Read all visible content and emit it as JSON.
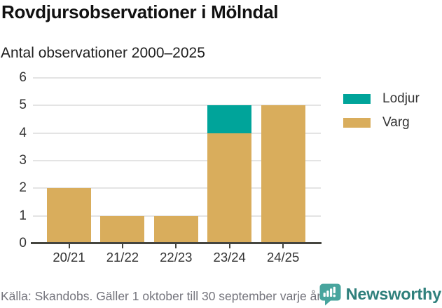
{
  "header": {
    "title": "Rovdjursobservationer i Mölndal",
    "subtitle": "Antal observationer 2000–2025"
  },
  "chart_data": {
    "type": "bar",
    "stacked": true,
    "title": "Rovdjursobservationer i Mölndal",
    "subtitle": "Antal observationer 2000–2025",
    "categories": [
      "20/21",
      "21/22",
      "22/23",
      "23/24",
      "24/25"
    ],
    "series": [
      {
        "name": "Lodjur",
        "color": "#00a49a",
        "values": [
          0,
          0,
          0,
          1,
          0
        ]
      },
      {
        "name": "Varg",
        "color": "#d9ad5c",
        "values": [
          2,
          1,
          1,
          4,
          5
        ]
      }
    ],
    "totals": [
      2,
      1,
      1,
      5,
      5
    ],
    "ylim": [
      0,
      6
    ],
    "yticks": [
      0,
      1,
      2,
      3,
      4,
      5,
      6
    ],
    "xlabel": "",
    "ylabel": "",
    "grid": true,
    "legend_position": "right"
  },
  "footer": {
    "source": "Källa: Skandobs. Gäller 1 oktober till 30 september varje år.",
    "brand": "Newsworthy"
  },
  "colors": {
    "lodjur": "#00a49a",
    "varg": "#d9ad5c",
    "grid": "#e4e4e4",
    "axis": "#45453f",
    "brand_icon": "#48a59e",
    "brand_text": "#2f807c"
  }
}
